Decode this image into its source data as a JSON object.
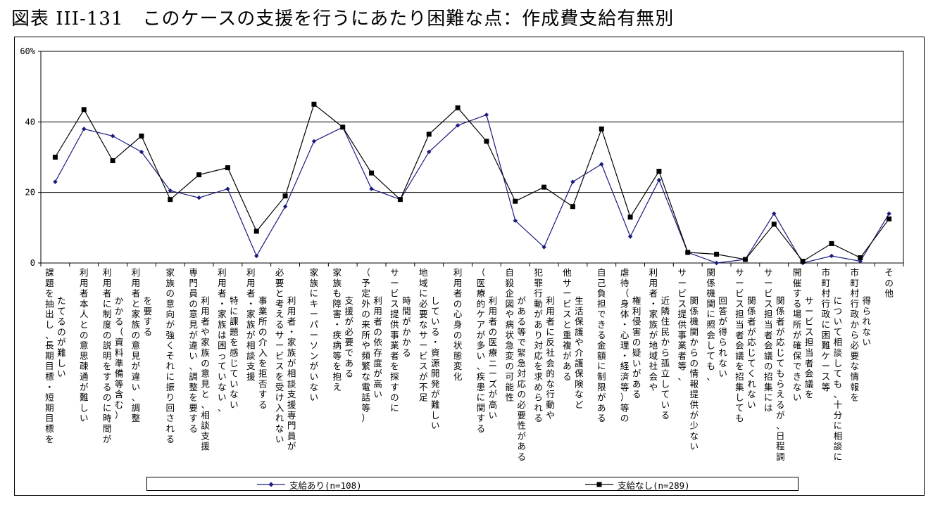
{
  "title": "図表 III-131　このケースの支援を行うにあたり困難な点：作成費支給有無別",
  "chart_data": {
    "type": "line",
    "ylim": [
      0,
      60
    ],
    "yticks": [
      0,
      20,
      40,
      60
    ],
    "ytick_labels": [
      "0",
      "20",
      "40",
      "60%"
    ],
    "grid": true,
    "legend_position": "bottom",
    "categories": [
      "課題を抽出し、長期目標・短期目標をたてるのが難しい",
      "利用者本人との意思疎通が難しい",
      "利用者に制度の説明をするのに時間がかかる（資料準備等含む）",
      "利用者と家族の意見が違い、調整を要する",
      "家族の意向が強くそれに振り回される",
      "専門員の意見と、利用者や家族の意見が違い、調整を要する",
      "利用者・家族は困っていない、特に課題を感じていない",
      "利用者・家族が相談支援事業所の介入を拒否する",
      "利用者・家族が相談支援専門員が必要と考えるサービスを受け入れない",
      "家族にキーパーソンがいない",
      "家族も障害・疾病等を抱え支援が必要である",
      "利用者の依存度が高い（予定外の来所や頻繁な電話等）",
      "サービス提供事業者を探すのに時間がかかる",
      "地域に必要なサービスが不足している・資源開発が難しい",
      "利用者の心身の状態変化",
      "利用者の医療ニーズが高い（医療的ケアが多い、疾患に関する知識が必要等）",
      "自殺企図や病状急変の可能性がある等で緊急対応の必要性がある",
      "犯罪行動があり対応を求められる、利用者に反社会的な行動や",
      "他サービスと重複がある（生活保護や介護保険など）",
      "自己負担できる金額に制限がある",
      "虐待（身体・心理・経済等）等の権利侵害の疑いがある",
      "利用者・家族が地域社会や近隣住民から孤立している",
      "サービス提供事業者等、関係機関からの情報提供が少ない",
      "関係機関に照会しても、回答が得られない",
      "サービス担当者会議を招集しても関係者が応じてくれない",
      "サービス担当者会議の招集には、関係者が応じてもらえるが、日程調整が困難である",
      "開催する場所が確保できない（サービス担当者会議を）",
      "市町村行政に困難ケース等について相談しても、十分に相談に応じてくれない",
      "市町村行政から必要な情報を得られない",
      "その他"
    ],
    "axis_labels": [
      "課題を抽出し、長期目標・短期目標を",
      "利用者本人との意思疎通が難しい",
      "利用者に制度の説明をするのに時間が",
      "利用者と家族の意見が違い、調整",
      "家族の意向が強くそれに振り回される",
      "専門員の意見が違い、調整を要する",
      "利用者・家族は困っていない、",
      "利用者・家族が相談支援",
      "必要と考えるサービスを受け入れない",
      "家族にキーパーソンがいない",
      "家族も障害・疾病等を抱え",
      "（予定外の来所や頻繁な電話等）",
      "サービス提供事業者を探すのに",
      "地域に必要なサービスが不足",
      "利用者の心身の状態変化",
      "（医療的ケアが多い、疾患に関する",
      "自殺企図や病状急変の可能性",
      "犯罪行動があり対応を求められる",
      "他サービスと重複がある",
      "自己負担できる金額に制限がある",
      "虐待（身体・心理・経済等）等の",
      "利用者・家族が地域社会や",
      "サービス提供事業者等、",
      "関係機関に照会しても、",
      "サービス担当者会議を招集しても",
      "サービス担当者会議の招集には",
      "開催する場所が確保できない",
      "市町村行政に困難ケース等",
      "市町村行政から必要な情報を",
      "その他"
    ],
    "axis_labels_2": [
      "たてるのが難しい",
      "",
      "かかる（資料準備等含む）",
      "を要する",
      "",
      "利用者や家族の意見と、相談支援",
      "特に課題を感じていない",
      "事業所の介入を拒否する",
      "利用者・家族が相談支援専門員が",
      "",
      "支援が必要である",
      "利用者の依存度が高い",
      "時間がかかる",
      "している・資源開発が難しい",
      "",
      "利用者の医療ニーズが高い",
      "がある等で緊急対応の必要性がある",
      "利用者に反社会的な行動や",
      "生活保護や介護保険など",
      "",
      "権利侵害の疑いがある",
      "近隣住民から孤立している",
      "関係機関からの情報提供が少ない",
      "回答が得られない",
      "関係者が応じてくれない",
      "関係者が応じてもらえるが、日程調整が困難である",
      "サービス担当者会議を",
      "について相談しても、十分に相談に応じてくれない",
      "得られない",
      ""
    ],
    "series": [
      {
        "name": "支給あり(n=108)",
        "color": "#1a1a80",
        "marker": "diamond",
        "values": [
          23,
          38,
          36,
          31.5,
          20.5,
          18.5,
          21,
          2,
          16,
          34.5,
          38.5,
          21,
          18,
          31.5,
          39,
          42,
          12,
          4.5,
          23,
          28,
          7.5,
          23.5,
          3,
          0,
          1,
          14,
          0,
          2,
          0.5,
          14
        ]
      },
      {
        "name": "支給なし(n=289)",
        "color": "#000000",
        "marker": "square",
        "values": [
          30,
          43.5,
          29,
          36,
          18,
          25,
          27,
          9,
          19,
          45,
          38.5,
          25.5,
          18,
          36.5,
          44,
          34.5,
          17.5,
          21.5,
          16,
          38,
          13,
          26,
          3,
          2.5,
          1,
          11,
          0.5,
          5.5,
          1.5,
          12.5
        ]
      }
    ]
  }
}
